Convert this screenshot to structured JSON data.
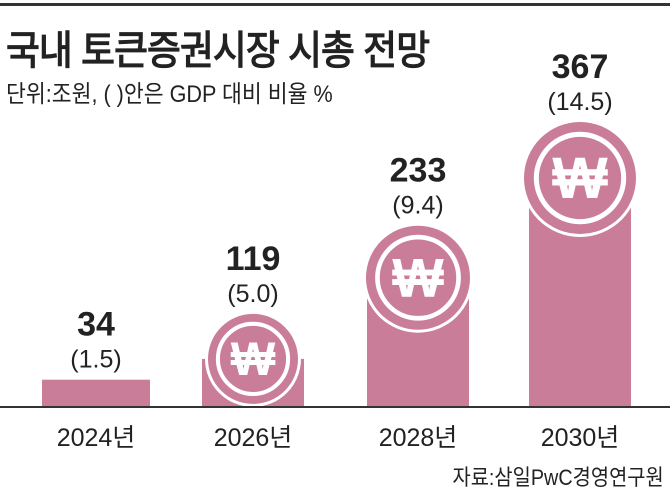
{
  "header": {
    "title": "국내 토큰증권시장 시총 전망",
    "subtitle": "단위:조원, (  )안은 GDP 대비 비율 %"
  },
  "source": "자료:삼일PwC경영연구원",
  "colors": {
    "bar": "#c97d98",
    "coin_ring": "#ffffff",
    "axis": "#333333"
  },
  "icons": {
    "coin": "won-coin-icon"
  },
  "chart_data": {
    "type": "bar",
    "title": "국내 토큰증권시장 시총 전망",
    "categories": [
      "2024년",
      "2026년",
      "2028년",
      "2030년"
    ],
    "values": [
      34,
      119,
      233,
      367
    ],
    "value_labels": [
      "34",
      "119",
      "233",
      "367"
    ],
    "gdp_ratio_labels": [
      "(1.5)",
      "(5.0)",
      "(9.4)",
      "(14.5)"
    ],
    "gdp_ratio": [
      1.5,
      5.0,
      9.4,
      14.5
    ],
    "ylabel": "",
    "unit": "조원",
    "ylim": [
      0,
      367
    ],
    "grid": false,
    "legend": "none"
  }
}
